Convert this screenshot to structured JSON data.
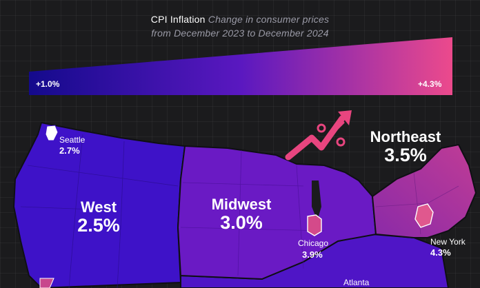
{
  "title": {
    "main": "CPI Inflation",
    "subtitle_line1": "Change in consumer prices",
    "subtitle_line2": "from December 2023 to December 2024"
  },
  "legend": {
    "min_label": "+1.0%",
    "max_label": "+4.3%",
    "min_value": 1.0,
    "max_value": 4.3,
    "color_min": "#140a8c",
    "color_max": "#ec4a8c"
  },
  "regions": {
    "west": {
      "name": "West",
      "value": "2.5%",
      "color": "#3e12c8"
    },
    "midwest": {
      "name": "Midwest",
      "value": "3.0%",
      "color": "#6a1ac4"
    },
    "northeast": {
      "name": "Northeast",
      "value": "3.5%",
      "color": "#a0309e"
    },
    "south": {
      "name": "",
      "value": "",
      "color": "#4f15c6"
    }
  },
  "cities": {
    "seattle": {
      "name": "Seattle",
      "value": "2.7%"
    },
    "chicago": {
      "name": "Chicago",
      "value": "3.9%"
    },
    "new_york": {
      "name": "New York",
      "value": "4.3%"
    },
    "atlanta": {
      "name": "Atlanta",
      "value": ""
    }
  },
  "colors": {
    "background": "#1b1b1d",
    "accent_pink": "#e8457f",
    "border": "#111111"
  },
  "icons": [
    "percent-arrow-icon"
  ]
}
